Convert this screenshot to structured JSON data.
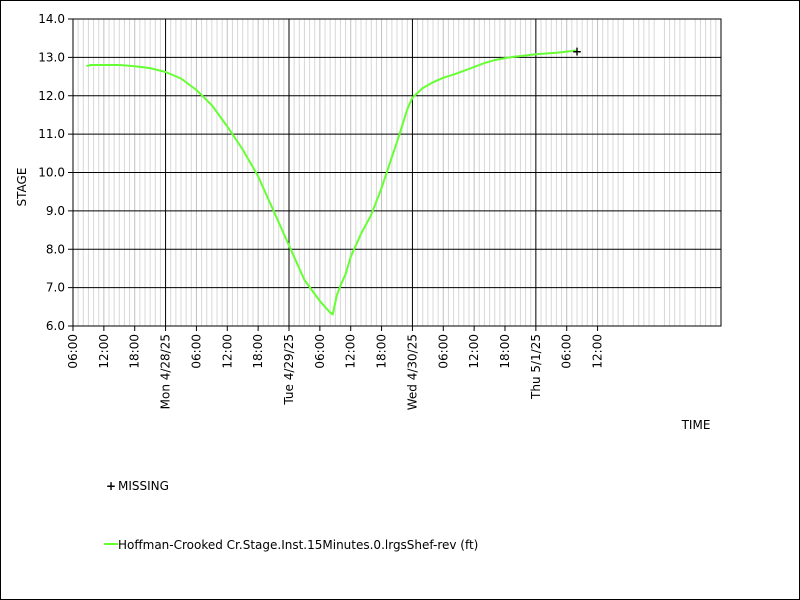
{
  "chart_data": {
    "type": "line",
    "title": "",
    "xlabel": "TIME",
    "ylabel": "STAGE",
    "ylim": [
      6.0,
      14.0
    ],
    "y_ticks": [
      "6.0",
      "7.0",
      "8.0",
      "9.0",
      "10.0",
      "11.0",
      "12.0",
      "13.0",
      "14.0"
    ],
    "xlim_hours": [
      -18,
      108
    ],
    "x_ticks": [
      {
        "hour": -18,
        "label": "06:00",
        "major": false
      },
      {
        "hour": -12,
        "label": "12:00",
        "major": false
      },
      {
        "hour": -6,
        "label": "18:00",
        "major": false
      },
      {
        "hour": 0,
        "label": "Mon 4/28/25",
        "major": true
      },
      {
        "hour": 6,
        "label": "06:00",
        "major": false
      },
      {
        "hour": 12,
        "label": "12:00",
        "major": false
      },
      {
        "hour": 18,
        "label": "18:00",
        "major": false
      },
      {
        "hour": 24,
        "label": "Tue 4/29/25",
        "major": true
      },
      {
        "hour": 30,
        "label": "06:00",
        "major": false
      },
      {
        "hour": 36,
        "label": "12:00",
        "major": false
      },
      {
        "hour": 42,
        "label": "18:00",
        "major": false
      },
      {
        "hour": 48,
        "label": "Wed 4/30/25",
        "major": true
      },
      {
        "hour": 54,
        "label": "06:00",
        "major": false
      },
      {
        "hour": 60,
        "label": "12:00",
        "major": false
      },
      {
        "hour": 66,
        "label": "18:00",
        "major": false
      },
      {
        "hour": 72,
        "label": "Thu 5/1/25",
        "major": true
      },
      {
        "hour": 78,
        "label": "06:00",
        "major": false
      },
      {
        "hour": 84,
        "label": "12:00",
        "major": false
      }
    ],
    "grid": true,
    "legend_position": "bottom-left",
    "series": [
      {
        "name": "Hoffman-Crooked Cr.Stage.Inst.15Minutes.0.lrgsShef-rev (ft)",
        "color": "#66ff33",
        "x_hours": [
          -15.3,
          -14.5,
          -12,
          -9,
          -6,
          -3,
          0,
          3,
          6,
          9,
          12,
          15,
          18,
          21,
          24,
          27,
          30,
          32,
          32.5,
          33.3,
          34,
          35,
          36,
          38,
          40,
          42,
          44,
          45.5,
          47,
          48,
          50,
          52,
          54,
          56,
          58,
          60,
          62,
          64,
          66,
          68,
          70,
          72,
          74,
          76,
          78,
          80
        ],
        "y_values": [
          12.78,
          12.8,
          12.8,
          12.8,
          12.77,
          12.72,
          12.62,
          12.45,
          12.15,
          11.75,
          11.2,
          10.6,
          9.9,
          9.0,
          8.1,
          7.2,
          6.65,
          6.35,
          6.3,
          6.8,
          7.05,
          7.35,
          7.8,
          8.4,
          8.9,
          9.6,
          10.4,
          11.0,
          11.65,
          11.95,
          12.2,
          12.35,
          12.47,
          12.55,
          12.65,
          12.75,
          12.85,
          12.93,
          12.98,
          13.02,
          13.05,
          13.08,
          13.1,
          13.12,
          13.15,
          13.18
        ]
      }
    ],
    "missing_marker": {
      "name": "MISSING",
      "color": "#000000",
      "x_hour": 80,
      "y_value": 13.18
    }
  }
}
